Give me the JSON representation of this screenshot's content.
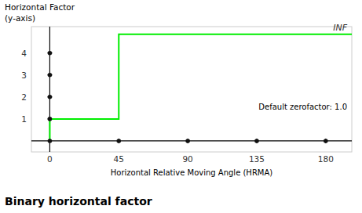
{
  "chart_data": {
    "type": "line",
    "title": "Binary horizontal factor",
    "xlabel": "Horizontal Relative Moving Angle (HRMA)",
    "ylabel": [
      "Horizontal Factor",
      "(y-axis)"
    ],
    "annotations": [
      "INF",
      "Default zerofactor: 1.0"
    ],
    "xlim": [
      -12,
      197
    ],
    "ylim": [
      -0.5,
      5.2
    ],
    "xticks": [
      0,
      45,
      90,
      135,
      180
    ],
    "yticks": [
      1,
      2,
      3,
      4
    ],
    "grid": false,
    "series": [
      {
        "type": "line",
        "color": "#00ee00",
        "x": [
          0,
          0,
          45,
          45,
          197
        ],
        "values": [
          0,
          1,
          1,
          4.85,
          4.85
        ]
      },
      {
        "type": "scatter",
        "color": "#111111",
        "x": [
          0,
          0,
          0,
          0,
          0,
          45,
          90,
          135,
          180
        ],
        "values": [
          0,
          1,
          2,
          3,
          4,
          0,
          0,
          0,
          0
        ]
      }
    ]
  }
}
